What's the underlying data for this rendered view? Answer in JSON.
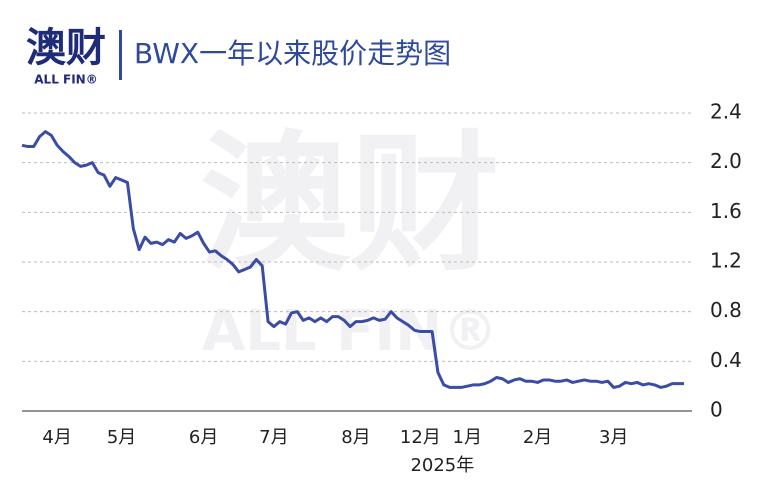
{
  "header": {
    "logo_text": "澳财",
    "logo_sub": "ALL FIN®"
  },
  "watermark": {
    "text": "澳财",
    "sub": "ALL FIN®"
  },
  "chart_data": {
    "type": "line",
    "title": "BWX一年以来股价走势图",
    "color": "#3a4ca6",
    "grid": true,
    "ylim": [
      0,
      2.4
    ],
    "yticks": [
      0,
      0.4,
      0.8,
      1.2,
      1.6,
      {
        "value": 2,
        "label": "2.0"
      },
      2.4
    ],
    "annotation": "2025年",
    "categories": [
      null,
      null,
      null,
      null,
      null,
      null,
      "4月",
      null,
      null,
      null,
      null,
      null,
      null,
      null,
      null,
      null,
      null,
      "5月",
      null,
      null,
      null,
      null,
      null,
      null,
      null,
      null,
      null,
      null,
      null,
      null,
      null,
      "6月",
      null,
      null,
      null,
      null,
      null,
      null,
      null,
      null,
      null,
      null,
      null,
      "7月",
      null,
      null,
      null,
      null,
      null,
      null,
      null,
      null,
      null,
      null,
      null,
      null,
      null,
      "8月",
      null,
      null,
      null,
      null,
      null,
      null,
      null,
      null,
      null,
      null,
      "12月",
      null,
      null,
      null,
      null,
      null,
      null,
      null,
      "1月",
      null,
      null,
      null,
      null,
      null,
      null,
      null,
      null,
      null,
      null,
      null,
      "2月",
      null,
      null,
      null,
      null,
      null,
      null,
      null,
      null,
      null,
      null,
      null,
      null,
      "3月",
      null,
      null,
      null,
      null,
      null,
      null,
      null,
      null,
      null,
      null,
      null,
      null
    ],
    "values": [
      2.14,
      2.13,
      2.13,
      2.21,
      2.25,
      2.22,
      2.14,
      2.09,
      2.05,
      2.0,
      1.97,
      1.98,
      2.0,
      1.92,
      1.9,
      1.81,
      1.88,
      1.86,
      1.84,
      1.47,
      1.3,
      1.4,
      1.35,
      1.36,
      1.34,
      1.38,
      1.36,
      1.43,
      1.39,
      1.41,
      1.44,
      1.35,
      1.28,
      1.29,
      1.25,
      1.22,
      1.18,
      1.12,
      1.14,
      1.16,
      1.22,
      1.17,
      0.72,
      0.68,
      0.72,
      0.7,
      0.79,
      0.8,
      0.73,
      0.75,
      0.72,
      0.75,
      0.72,
      0.76,
      0.76,
      0.73,
      0.68,
      0.72,
      0.72,
      0.73,
      0.75,
      0.73,
      0.74,
      0.8,
      0.75,
      0.72,
      0.69,
      0.65,
      0.64,
      0.64,
      0.64,
      0.31,
      0.21,
      0.19,
      0.19,
      0.19,
      0.2,
      0.21,
      0.21,
      0.22,
      0.24,
      0.27,
      0.26,
      0.23,
      0.25,
      0.26,
      0.24,
      0.24,
      0.23,
      0.25,
      0.25,
      0.24,
      0.24,
      0.25,
      0.23,
      0.24,
      0.25,
      0.24,
      0.24,
      0.23,
      0.24,
      0.19,
      0.2,
      0.23,
      0.22,
      0.23,
      0.21,
      0.22,
      0.21,
      0.19,
      0.2,
      0.22,
      0.22,
      0.22
    ]
  }
}
